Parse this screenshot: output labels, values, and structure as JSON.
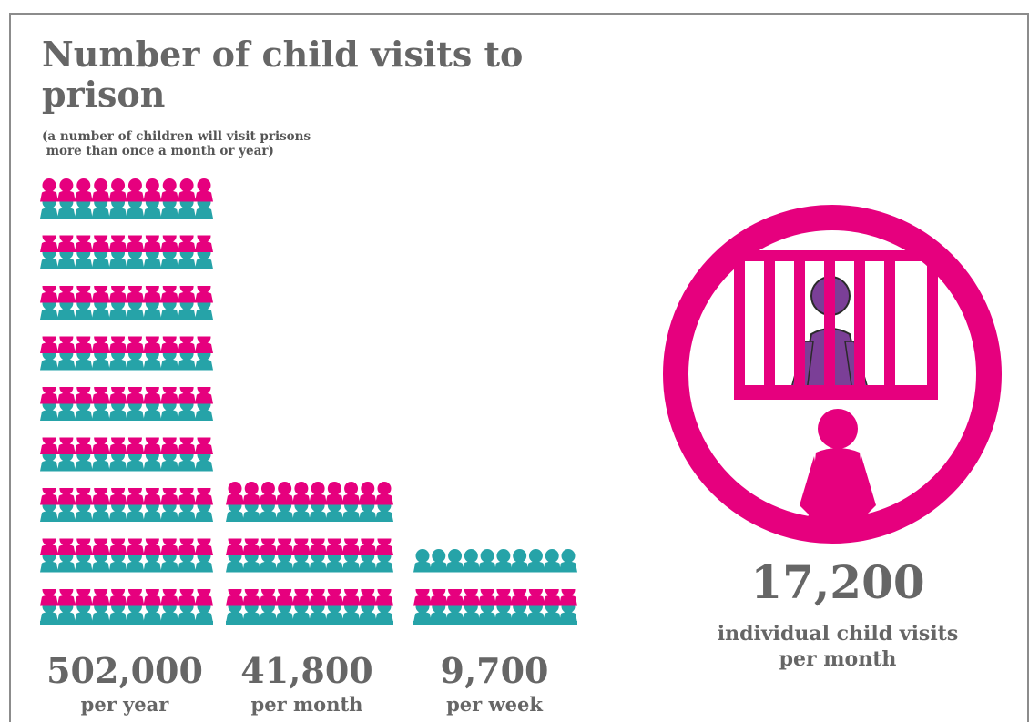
{
  "header": {
    "title": "Number of child visits to prison",
    "subtitle_line1": "(a number of children will visit prisons",
    "subtitle_line2": " more than once a month or year)"
  },
  "colors": {
    "pink": "#e6007e",
    "teal": "#26a3a8",
    "purple": "#7b3f97",
    "text": "#666666",
    "frame": "#8c8c8c"
  },
  "chart_data": {
    "type": "bar",
    "categories": [
      "per year",
      "per month",
      "per week"
    ],
    "values": [
      502000,
      41800,
      9700
    ],
    "value_labels": [
      "502,000",
      "41,800",
      "9,700"
    ],
    "title": "Number of child visits to prison",
    "xlabel": "",
    "ylabel": ""
  },
  "highlight": {
    "value": "17,200",
    "label_line1": "individual child visits",
    "label_line2": "per month",
    "icon": "child-behind-bars-icon"
  }
}
